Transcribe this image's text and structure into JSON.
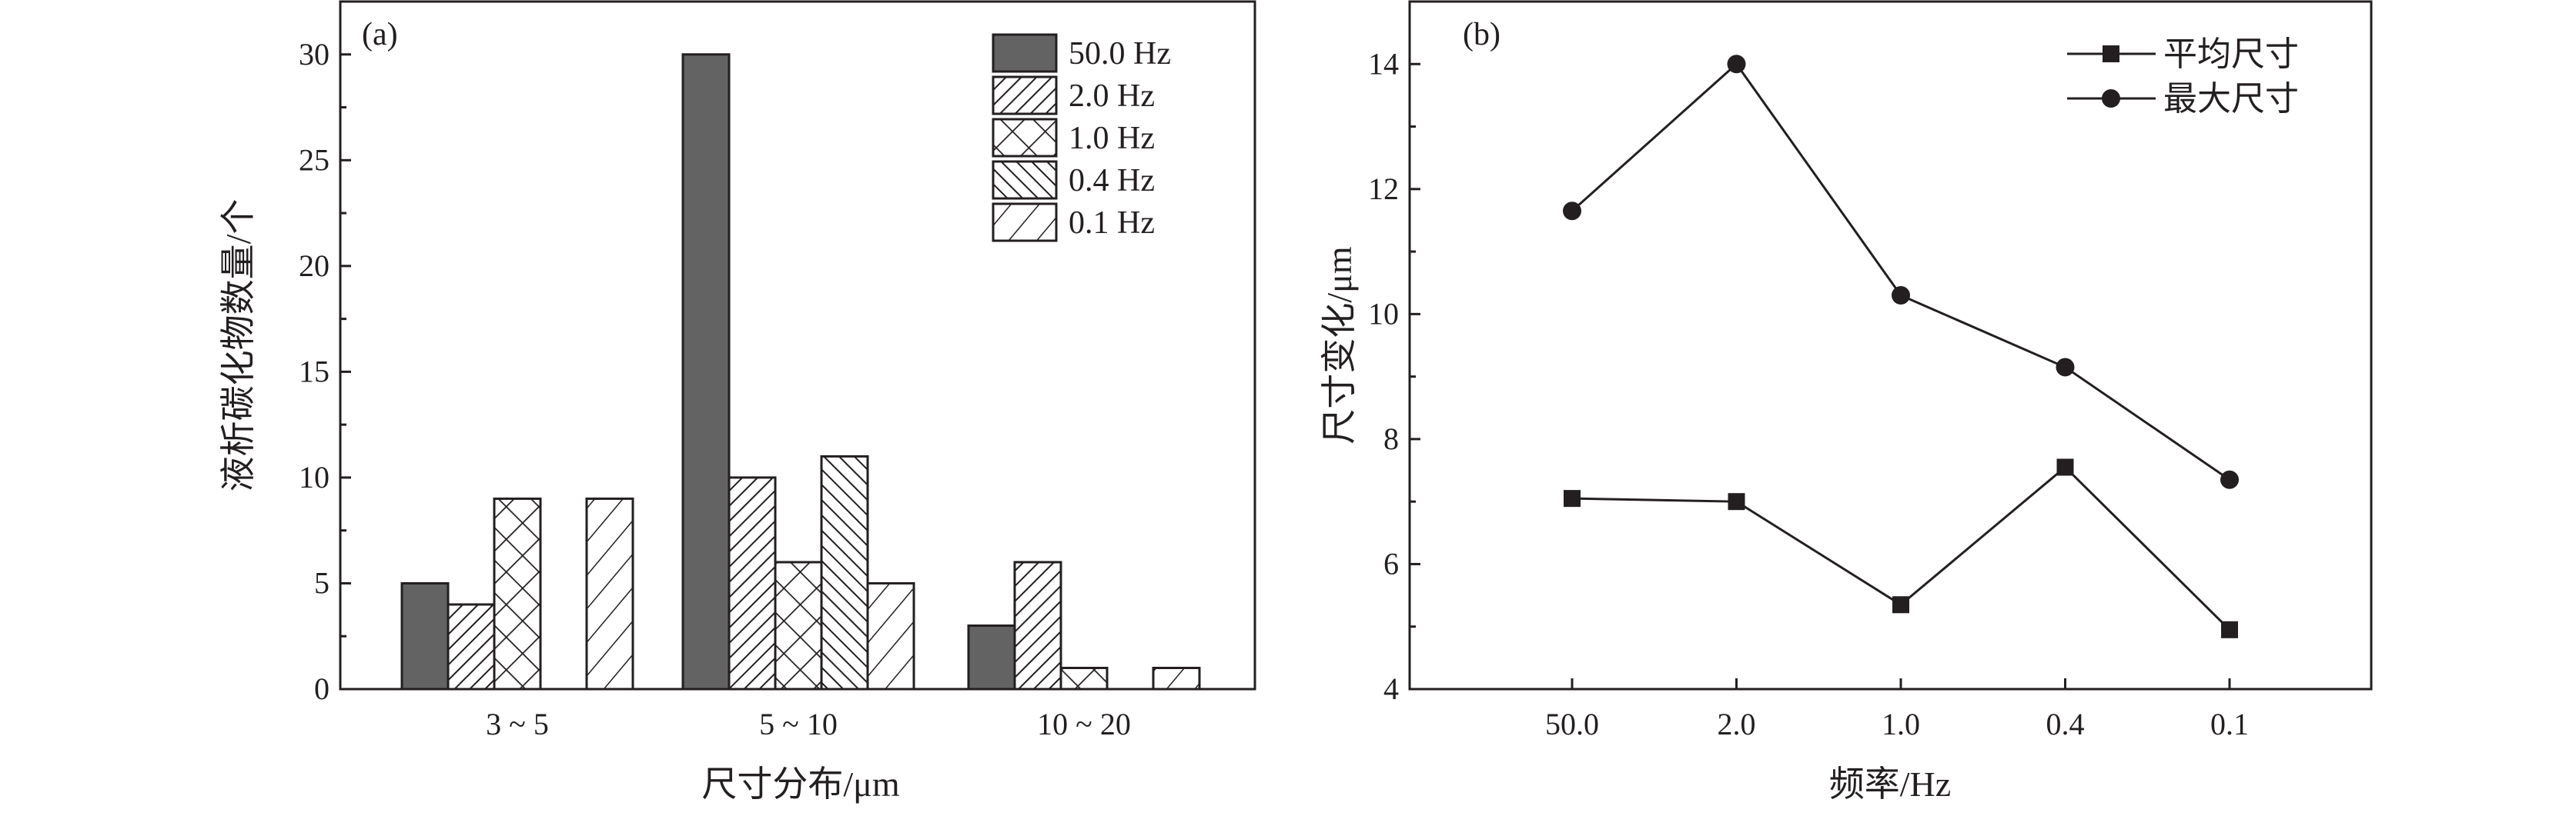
{
  "chart_data": [
    {
      "type": "bar",
      "panel_label": "(a)",
      "title": "",
      "xlabel": "尺寸分布/μm",
      "ylabel": "液析碳化物数量/个",
      "categories": [
        "3 ~ 5",
        "5 ~ 10",
        "10 ~ 20"
      ],
      "ylim": [
        0,
        32.5
      ],
      "yticks": [
        0,
        5,
        10,
        15,
        20,
        25,
        30
      ],
      "grid": false,
      "legend_position": "top-right",
      "series": [
        {
          "name": "50.0 Hz",
          "pattern": "solid",
          "color": "#636363",
          "values": [
            5,
            30,
            3
          ]
        },
        {
          "name": "2.0 Hz",
          "pattern": "dense-forward-hatch",
          "values": [
            4,
            10,
            6
          ]
        },
        {
          "name": "1.0 Hz",
          "pattern": "crosshatch",
          "values": [
            9,
            6,
            1
          ]
        },
        {
          "name": "0.4 Hz",
          "pattern": "dense-back-hatch",
          "values": [
            0,
            11,
            0
          ]
        },
        {
          "name": "0.1 Hz",
          "pattern": "sparse-forward-hatch",
          "values": [
            9,
            5,
            1
          ]
        }
      ]
    },
    {
      "type": "line",
      "panel_label": "(b)",
      "title": "",
      "xlabel": "频率/Hz",
      "ylabel": "尺寸变化/μm",
      "categories": [
        "50.0",
        "2.0",
        "1.0",
        "0.4",
        "0.1"
      ],
      "ylim": [
        4,
        15
      ],
      "yticks": [
        4,
        6,
        8,
        10,
        12,
        14
      ],
      "grid": false,
      "legend_position": "top-right",
      "series": [
        {
          "name": "平均尺寸",
          "marker": "square",
          "values": [
            7.05,
            7.0,
            5.35,
            7.55,
            4.95
          ]
        },
        {
          "name": "最大尺寸",
          "marker": "circle",
          "values": [
            11.65,
            14.0,
            10.3,
            9.15,
            7.35
          ]
        }
      ]
    }
  ]
}
